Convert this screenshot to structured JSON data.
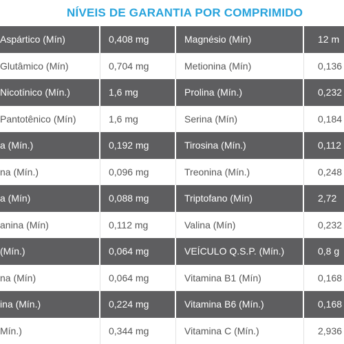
{
  "header": {
    "title": "NÍVEIS DE GARANTIA POR COMPRIMIDO"
  },
  "table": {
    "rows": [
      [
        "Aspártico (Mín)",
        "0,408 mg",
        "Magnésio (Mín)",
        "12 m"
      ],
      [
        "Glutâmico (Mín)",
        "0,704 mg",
        "Metionina (Mín)",
        "0,136"
      ],
      [
        "Nicotínico (Mín.)",
        "1,6 mg",
        "Prolina (Mín.)",
        "0,232"
      ],
      [
        "Pantotênico (Mín)",
        "1,6 mg",
        "Serina (Mín)",
        "0,184"
      ],
      [
        "a (Mín.)",
        "0,192 mg",
        "Tirosina (Mín.)",
        "0,112"
      ],
      [
        "na (Mín.)",
        "0,096 mg",
        "Treonina (Mín.)",
        "0,248"
      ],
      [
        "a (Mín)",
        "0,088 mg",
        "Triptofano (Mín)",
        "2,72"
      ],
      [
        "anina (Mín)",
        "0,112 mg",
        "Valina (Mín)",
        "0,232"
      ],
      [
        "(Mín.)",
        "0,064 mg",
        "VEÍCULO Q.S.P. (Mín.)",
        "0,8 g"
      ],
      [
        "na (Mín)",
        "0,064 mg",
        "Vitamina B1 (Mín)",
        "0,168"
      ],
      [
        "ina (Mín.)",
        "0,224 mg",
        "Vitamina B6 (Mín.)",
        "0,168"
      ],
      [
        "Mín.)",
        "0,344 mg",
        "Vitamina C (Mín.)",
        "2,936"
      ]
    ]
  }
}
